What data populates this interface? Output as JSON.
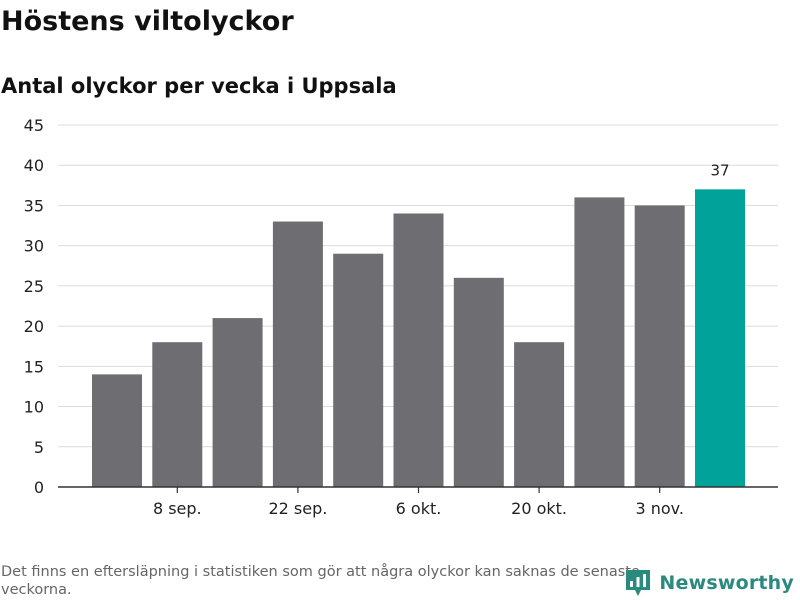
{
  "header": {
    "title": "Höstens viltolyckor",
    "subtitle": "Antal olyckor per vecka i Uppsala"
  },
  "footer": {
    "note": "Det finns en eftersläpning i statistiken som gör att några olyckor kan saknas de senaste veckorna.",
    "brand": "Newsworthy",
    "brand_icon": "newsworthy-logo-icon"
  },
  "colors": {
    "bar": "#6e6d72",
    "highlight": "#00a29a",
    "grid": "#dcdcdc",
    "axis": "#333333",
    "text": "#222222"
  },
  "chart_data": {
    "type": "bar",
    "title": "Höstens viltolyckor",
    "subtitle": "Antal olyckor per vecka i Uppsala",
    "xlabel": "",
    "ylabel": "",
    "ylim": [
      0,
      45
    ],
    "yticks": [
      0,
      5,
      10,
      15,
      20,
      25,
      30,
      35,
      40,
      45
    ],
    "categories": [
      "",
      "8 sep.",
      "",
      "22 sep.",
      "",
      "6 okt.",
      "",
      "20 okt.",
      "",
      "3 nov.",
      ""
    ],
    "xtick_labels": [
      "8 sep.",
      "22 sep.",
      "6 okt.",
      "20 okt.",
      "3 nov."
    ],
    "values": [
      14,
      18,
      21,
      33,
      29,
      34,
      26,
      18,
      36,
      35,
      37
    ],
    "highlight_index": 10,
    "data_labels": [
      {
        "index": 10,
        "text": "37"
      }
    ],
    "grid": true,
    "legend": "none"
  }
}
